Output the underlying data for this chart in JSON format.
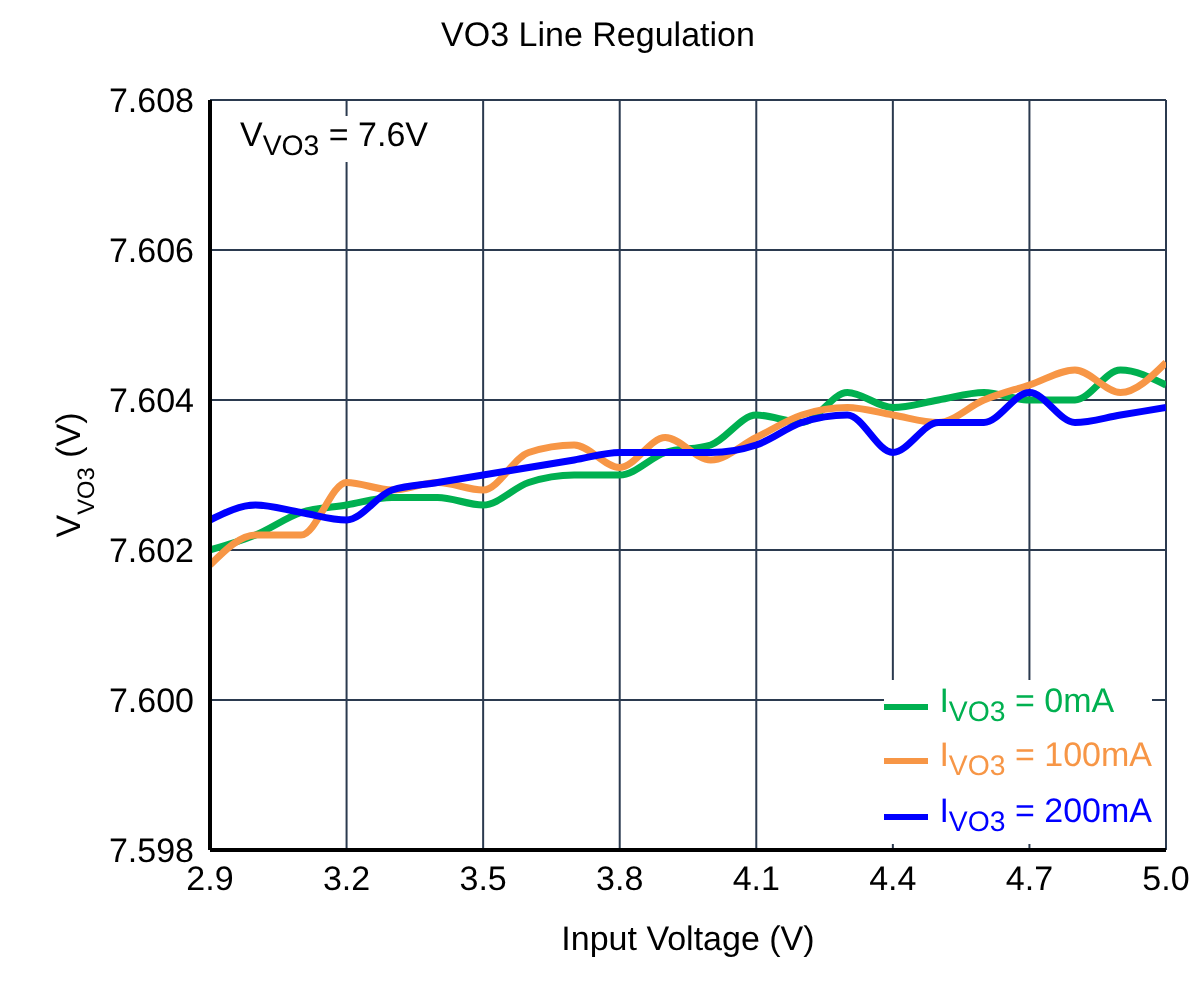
{
  "chart_data": {
    "type": "line",
    "title": "VO3 Line Regulation",
    "xlabel": "Input Voltage (V)",
    "ylabel": "V$_{VO3}$ (V)",
    "annotations": [
      "V$_{VO3}$ = 7.6V"
    ],
    "x": [
      2.9,
      3.0,
      3.1,
      3.2,
      3.3,
      3.4,
      3.5,
      3.6,
      3.7,
      3.8,
      3.9,
      4.0,
      4.1,
      4.2,
      4.3,
      4.4,
      4.5,
      4.6,
      4.7,
      4.8,
      4.9,
      5.0
    ],
    "series": [
      {
        "name": "I$_{VO3}$ = 0mA",
        "color": "#00b050",
        "values": [
          7.602,
          7.6022,
          7.6025,
          7.6026,
          7.6027,
          7.6027,
          7.6026,
          7.6029,
          7.603,
          7.603,
          7.6033,
          7.6034,
          7.6038,
          7.6037,
          7.6041,
          7.6039,
          7.604,
          7.6041,
          7.604,
          7.604,
          7.6044,
          7.6042
        ]
      },
      {
        "name": "I$_{VO3}$ = 100mA",
        "color": "#f79646",
        "values": [
          7.6018,
          7.6022,
          7.6022,
          7.6029,
          7.6028,
          7.6029,
          7.6028,
          7.6033,
          7.6034,
          7.6031,
          7.6035,
          7.6032,
          7.6035,
          7.6038,
          7.6039,
          7.6038,
          7.6037,
          7.604,
          7.6042,
          7.6044,
          7.6041,
          7.6045
        ]
      },
      {
        "name": "I$_{VO3}$ = 200mA",
        "color": "#0000ff",
        "values": [
          7.6024,
          7.6026,
          7.6025,
          7.6024,
          7.6028,
          7.6029,
          7.603,
          7.6031,
          7.6032,
          7.6033,
          7.6033,
          7.6033,
          7.6034,
          7.6037,
          7.6038,
          7.6033,
          7.6037,
          7.6037,
          7.6041,
          7.6037,
          7.6038,
          7.6039
        ]
      }
    ],
    "xlim": [
      2.9,
      5.0
    ],
    "xticks": [
      {
        "value": 2.9,
        "label": "2.9"
      },
      {
        "value": 3.2,
        "label": "3.2"
      },
      {
        "value": 3.5,
        "label": "3.5"
      },
      {
        "value": 3.8,
        "label": "3.8"
      },
      {
        "value": 4.1,
        "label": "4.1"
      },
      {
        "value": 4.4,
        "label": "4.4"
      },
      {
        "value": 4.7,
        "label": "4.7"
      },
      {
        "value": 5.0,
        "label": "5.0"
      }
    ],
    "ylim": [
      7.598,
      7.608
    ],
    "yticks": [
      {
        "value": 7.598,
        "label": "7.598"
      },
      {
        "value": 7.6,
        "label": "7.600"
      },
      {
        "value": 7.602,
        "label": "7.602"
      },
      {
        "value": 7.604,
        "label": "7.604"
      },
      {
        "value": 7.606,
        "label": "7.606"
      },
      {
        "value": 7.608,
        "label": "7.608"
      }
    ],
    "grid": true,
    "legend": "bottom right",
    "marker": "none",
    "line_style": "solid"
  }
}
